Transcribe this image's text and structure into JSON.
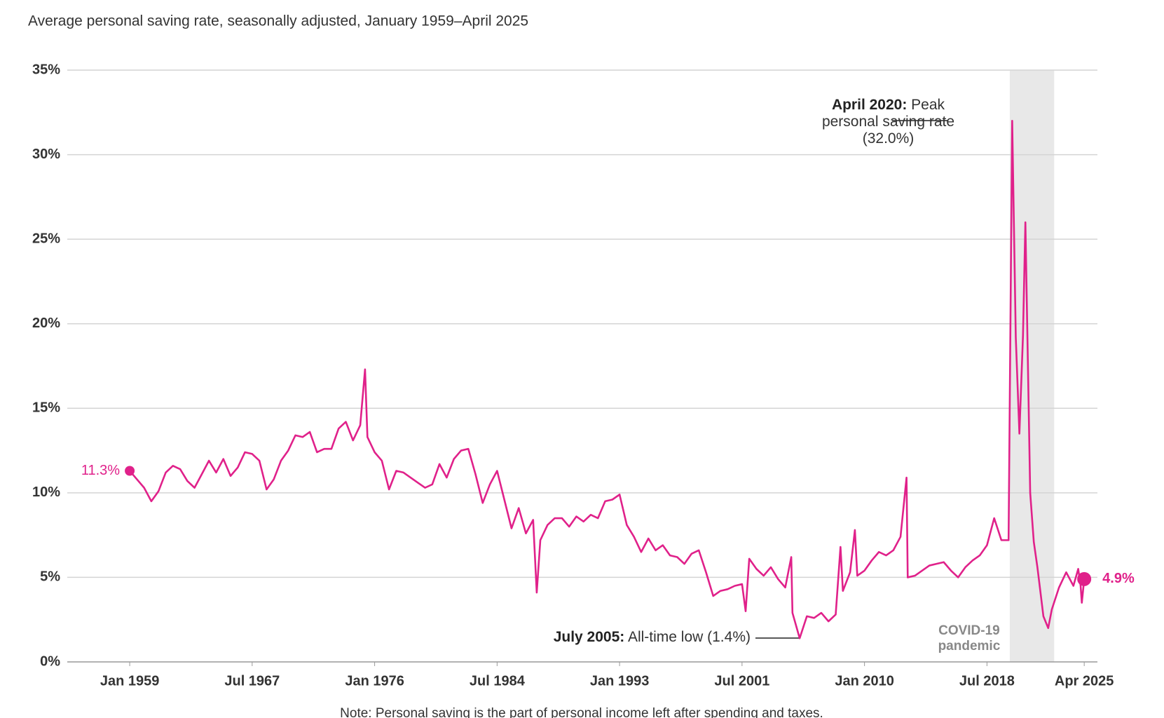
{
  "chart_data": {
    "type": "line",
    "subtitle": "Average personal saving rate, seasonally adjusted, January 1959–April 2025",
    "note": "Note: Personal saving is the part of personal income left after spending and taxes.",
    "x": [
      "1959-01",
      "1959-07",
      "1960-01",
      "1960-07",
      "1961-01",
      "1961-07",
      "1962-01",
      "1962-07",
      "1963-01",
      "1963-07",
      "1964-01",
      "1964-07",
      "1965-01",
      "1965-07",
      "1966-01",
      "1966-07",
      "1967-01",
      "1967-07",
      "1968-01",
      "1968-07",
      "1969-01",
      "1969-07",
      "1970-01",
      "1970-07",
      "1971-01",
      "1971-07",
      "1972-01",
      "1972-07",
      "1973-01",
      "1973-07",
      "1974-01",
      "1974-07",
      "1975-01",
      "1975-05",
      "1975-07",
      "1976-01",
      "1976-07",
      "1977-01",
      "1977-07",
      "1978-01",
      "1978-07",
      "1979-01",
      "1979-07",
      "1980-01",
      "1980-07",
      "1981-01",
      "1981-07",
      "1982-01",
      "1982-07",
      "1983-01",
      "1983-07",
      "1984-01",
      "1984-07",
      "1985-01",
      "1985-07",
      "1986-01",
      "1986-07",
      "1987-01",
      "1987-04",
      "1987-07",
      "1988-01",
      "1988-07",
      "1989-01",
      "1989-07",
      "1990-01",
      "1990-07",
      "1991-01",
      "1991-07",
      "1992-01",
      "1992-07",
      "1993-01",
      "1993-07",
      "1994-01",
      "1994-07",
      "1995-01",
      "1995-07",
      "1996-01",
      "1996-07",
      "1997-01",
      "1997-07",
      "1998-01",
      "1998-07",
      "1999-01",
      "1999-07",
      "2000-01",
      "2000-07",
      "2001-01",
      "2001-07",
      "2001-10",
      "2002-01",
      "2002-07",
      "2003-01",
      "2003-07",
      "2004-01",
      "2004-07",
      "2004-12",
      "2005-01",
      "2005-07",
      "2006-01",
      "2006-07",
      "2007-01",
      "2007-07",
      "2008-01",
      "2008-05",
      "2008-07",
      "2009-01",
      "2009-05",
      "2009-07",
      "2010-01",
      "2010-07",
      "2011-01",
      "2011-07",
      "2012-01",
      "2012-07",
      "2012-12",
      "2013-01",
      "2013-07",
      "2014-01",
      "2014-07",
      "2015-01",
      "2015-07",
      "2016-01",
      "2016-07",
      "2017-01",
      "2017-07",
      "2018-01",
      "2018-07",
      "2019-01",
      "2019-07",
      "2020-01",
      "2020-04",
      "2020-07",
      "2020-10",
      "2021-01",
      "2021-03",
      "2021-07",
      "2021-10",
      "2022-01",
      "2022-06",
      "2022-10",
      "2023-01",
      "2023-07",
      "2024-01",
      "2024-07",
      "2024-11",
      "2025-01",
      "2025-02",
      "2025-04"
    ],
    "series": [
      {
        "color": "#e0218a",
        "values": [
          11.3,
          10.8,
          10.3,
          9.5,
          10.1,
          11.2,
          11.6,
          11.4,
          10.7,
          10.3,
          11.1,
          11.9,
          11.2,
          12.0,
          11.0,
          11.5,
          12.4,
          12.3,
          11.9,
          10.2,
          10.8,
          11.9,
          12.5,
          13.4,
          13.3,
          13.6,
          12.4,
          12.6,
          12.6,
          13.8,
          14.2,
          13.1,
          14.0,
          17.3,
          13.3,
          12.4,
          11.9,
          10.2,
          11.3,
          11.2,
          10.9,
          10.6,
          10.3,
          10.5,
          11.7,
          10.9,
          12.0,
          12.5,
          12.6,
          11.1,
          9.4,
          10.5,
          11.3,
          9.6,
          7.9,
          9.1,
          7.6,
          8.4,
          4.1,
          7.2,
          8.1,
          8.5,
          8.5,
          8.0,
          8.6,
          8.3,
          8.7,
          8.5,
          9.5,
          9.6,
          9.9,
          8.1,
          7.4,
          6.5,
          7.3,
          6.6,
          6.9,
          6.3,
          6.2,
          5.8,
          6.4,
          6.6,
          5.3,
          3.9,
          4.2,
          4.3,
          4.5,
          4.6,
          3.0,
          6.1,
          5.5,
          5.1,
          5.6,
          4.9,
          4.4,
          6.2,
          2.9,
          1.4,
          2.7,
          2.6,
          2.9,
          2.4,
          2.8,
          6.8,
          4.2,
          5.3,
          7.8,
          5.1,
          5.4,
          6.0,
          6.5,
          6.3,
          6.6,
          7.4,
          10.9,
          5.0,
          5.1,
          5.4,
          5.7,
          5.8,
          5.9,
          5.4,
          5.0,
          5.6,
          6.0,
          6.3,
          6.9,
          8.5,
          7.2,
          7.2,
          32.0,
          19.2,
          13.5,
          19.3,
          26.0,
          10.0,
          7.1,
          5.6,
          2.7,
          2.0,
          3.1,
          4.4,
          5.3,
          4.5,
          5.5,
          4.5,
          3.5,
          4.9
        ],
        "value_labels": [
          "11.3%",
          null,
          null,
          null,
          null,
          null,
          null,
          null,
          null,
          null,
          null,
          null,
          null,
          null,
          null,
          null,
          null,
          null,
          null,
          null,
          null,
          null,
          null,
          null,
          null,
          null,
          null,
          null,
          null,
          null,
          null,
          null,
          null,
          null,
          null,
          null,
          null,
          null,
          null,
          null,
          null,
          null,
          null,
          null,
          null,
          null,
          null,
          null,
          null,
          null,
          null,
          null,
          null,
          null,
          null,
          null,
          null,
          null,
          null,
          null,
          null,
          null,
          null,
          null,
          null,
          null,
          null,
          null,
          null,
          null,
          null,
          null,
          null,
          null,
          null,
          null,
          null,
          null,
          null,
          null,
          null,
          null,
          null,
          null,
          null,
          null,
          null,
          null,
          null,
          null,
          null,
          null,
          null,
          null,
          null,
          null,
          null,
          null,
          null,
          null,
          null,
          null,
          null,
          null,
          null,
          null,
          null,
          null,
          null,
          null,
          null,
          null,
          null,
          null,
          null,
          null,
          null,
          null,
          null,
          null,
          null,
          null,
          null,
          null,
          null,
          null,
          null,
          null,
          null,
          null,
          null,
          null,
          null,
          null,
          null,
          null,
          null,
          null,
          null,
          null,
          null,
          null,
          null,
          null,
          null,
          null,
          null,
          "4.9%"
        ]
      }
    ],
    "xlim": [
      "1954-09",
      "2026-03"
    ],
    "xticks": [
      {
        "value": "1959-01",
        "label": "Jan 1959"
      },
      {
        "value": "1967-07",
        "label": "Jul 1967"
      },
      {
        "value": "1976-01",
        "label": "Jan 1976"
      },
      {
        "value": "1984-07",
        "label": "Jul 1984"
      },
      {
        "value": "1993-01",
        "label": "Jan 1993"
      },
      {
        "value": "2001-07",
        "label": "Jul 2001"
      },
      {
        "value": "2010-01",
        "label": "Jan 2010"
      },
      {
        "value": "2018-07",
        "label": "Jul 2018"
      },
      {
        "value": "2025-04",
        "label": "Apr 2025"
      }
    ],
    "ylim": [
      0,
      35
    ],
    "yticks": [
      {
        "value": 0,
        "label": "0%"
      },
      {
        "value": 5,
        "label": "5%"
      },
      {
        "value": 10,
        "label": "10%"
      },
      {
        "value": 15,
        "label": "15%"
      },
      {
        "value": 20,
        "label": "20%"
      },
      {
        "value": 25,
        "label": "25%"
      },
      {
        "value": 30,
        "label": "30%"
      },
      {
        "value": 35,
        "label": "35%"
      }
    ],
    "grid": true,
    "shade": {
      "from": "2020-02",
      "to": "2023-03",
      "label": [
        "COVID-19",
        "pandemic"
      ]
    },
    "annotations": [
      {
        "bold": "April 2020:",
        "text": "Peak personal saving rate (32.0%)"
      },
      {
        "bold": "July 2005:",
        "text": "All-time low (1.4%)"
      }
    ]
  }
}
